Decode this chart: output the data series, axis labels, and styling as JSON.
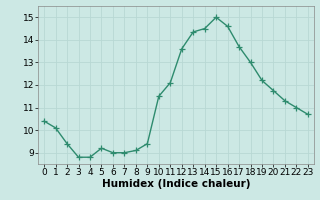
{
  "x": [
    0,
    1,
    2,
    3,
    4,
    5,
    6,
    7,
    8,
    9,
    10,
    11,
    12,
    13,
    14,
    15,
    16,
    17,
    18,
    19,
    20,
    21,
    22,
    23
  ],
  "y": [
    10.4,
    10.1,
    9.4,
    8.8,
    8.8,
    9.2,
    9.0,
    9.0,
    9.1,
    9.4,
    11.5,
    12.1,
    13.6,
    14.35,
    14.5,
    15.0,
    14.6,
    13.7,
    13.0,
    12.2,
    11.75,
    11.3,
    11.0,
    10.7
  ],
  "line_color": "#2e8b6e",
  "bg_color": "#cce8e4",
  "grid_color_major": "#b8d8d4",
  "grid_color_minor": "#d4ecea",
  "xlabel": "Humidex (Indice chaleur)",
  "ylim": [
    8.5,
    15.5
  ],
  "xlim": [
    -0.5,
    23.5
  ],
  "yticks": [
    9,
    10,
    11,
    12,
    13,
    14,
    15
  ],
  "xticks": [
    0,
    1,
    2,
    3,
    4,
    5,
    6,
    7,
    8,
    9,
    10,
    11,
    12,
    13,
    14,
    15,
    16,
    17,
    18,
    19,
    20,
    21,
    22,
    23
  ],
  "marker": "+",
  "marker_size": 4,
  "line_width": 1.0,
  "tick_fontsize": 6.5,
  "xlabel_fontsize": 7.5
}
